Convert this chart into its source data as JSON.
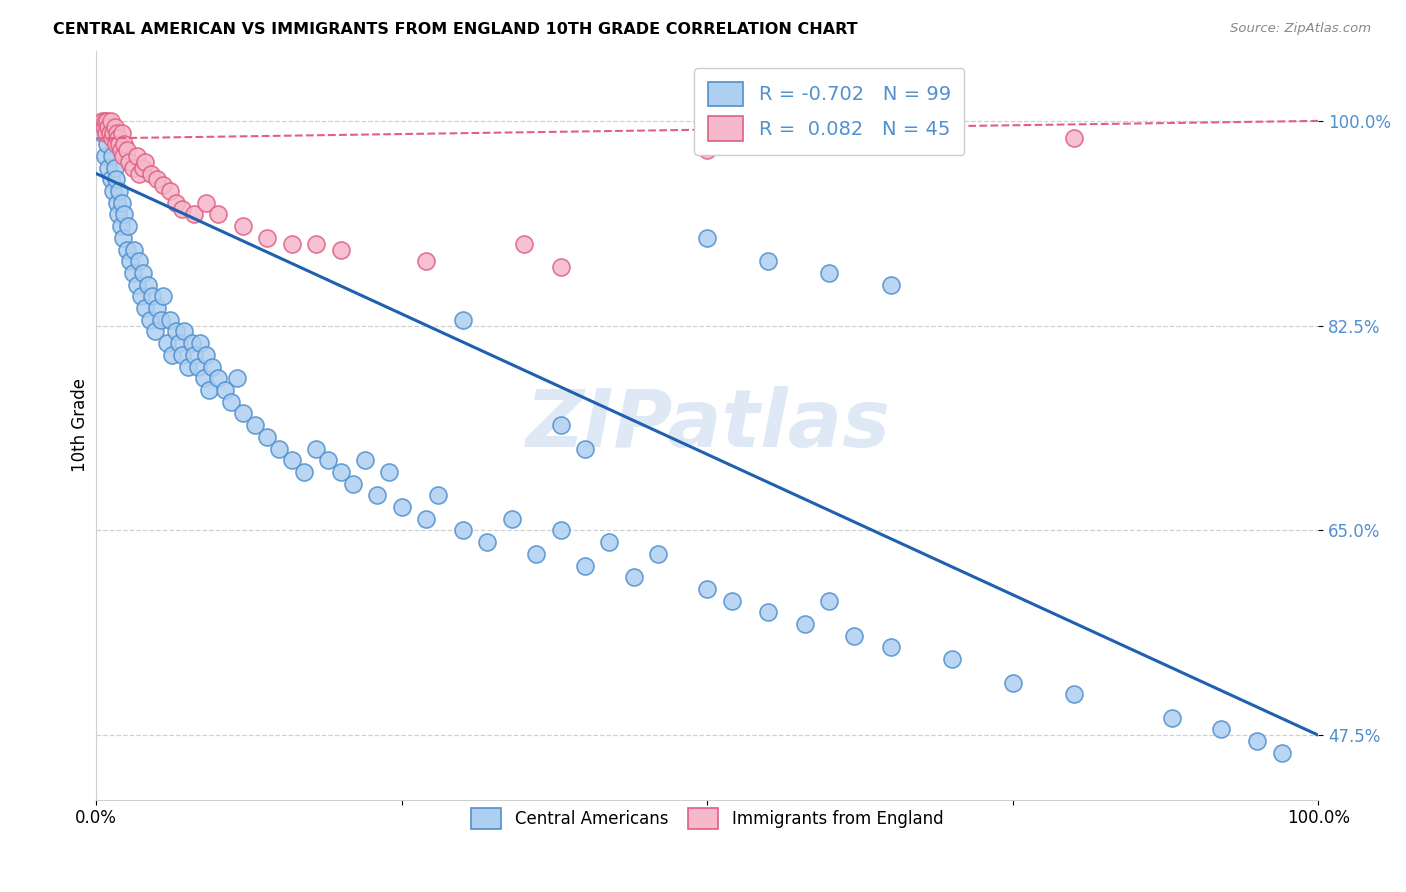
{
  "title": "CENTRAL AMERICAN VS IMMIGRANTS FROM ENGLAND 10TH GRADE CORRELATION CHART",
  "source": "Source: ZipAtlas.com",
  "ylabel": "10th Grade",
  "xmin": 0.0,
  "xmax": 1.0,
  "ymin": 0.42,
  "ymax": 1.06,
  "yticks": [
    0.475,
    0.65,
    0.825,
    1.0
  ],
  "ytick_labels": [
    "47.5%",
    "65.0%",
    "82.5%",
    "100.0%"
  ],
  "watermark": "ZIPatlas",
  "blue_R": "-0.702",
  "blue_N": "99",
  "pink_R": "0.082",
  "pink_N": "45",
  "blue_color": "#aecff0",
  "blue_edge_color": "#5090d0",
  "pink_color": "#f5b8cc",
  "pink_edge_color": "#e06080",
  "pink_line_color": "#e06080",
  "blue_line_color": "#2060b0",
  "blue_trend_x0": 0.0,
  "blue_trend_y0": 0.955,
  "blue_trend_x1": 1.0,
  "blue_trend_y1": 0.475,
  "pink_trend_x0": 0.0,
  "pink_trend_y0": 0.985,
  "pink_trend_x1": 1.0,
  "pink_trend_y1": 1.0,
  "blue_scatter_x": [
    0.005,
    0.007,
    0.009,
    0.01,
    0.012,
    0.013,
    0.014,
    0.015,
    0.016,
    0.017,
    0.018,
    0.019,
    0.02,
    0.021,
    0.022,
    0.023,
    0.025,
    0.026,
    0.028,
    0.03,
    0.031,
    0.033,
    0.035,
    0.037,
    0.038,
    0.04,
    0.042,
    0.044,
    0.046,
    0.048,
    0.05,
    0.053,
    0.055,
    0.058,
    0.06,
    0.062,
    0.065,
    0.068,
    0.07,
    0.072,
    0.075,
    0.078,
    0.08,
    0.083,
    0.085,
    0.088,
    0.09,
    0.092,
    0.095,
    0.1,
    0.105,
    0.11,
    0.115,
    0.12,
    0.13,
    0.14,
    0.15,
    0.16,
    0.17,
    0.18,
    0.19,
    0.2,
    0.21,
    0.22,
    0.23,
    0.24,
    0.25,
    0.27,
    0.28,
    0.3,
    0.32,
    0.34,
    0.36,
    0.38,
    0.4,
    0.42,
    0.44,
    0.46,
    0.5,
    0.52,
    0.55,
    0.58,
    0.6,
    0.62,
    0.65,
    0.7,
    0.75,
    0.8,
    0.88,
    0.92,
    0.95,
    0.97,
    0.5,
    0.55,
    0.6,
    0.65,
    0.38,
    0.4,
    0.3
  ],
  "blue_scatter_y": [
    0.99,
    0.97,
    0.98,
    0.96,
    0.95,
    0.97,
    0.94,
    0.96,
    0.95,
    0.93,
    0.92,
    0.94,
    0.91,
    0.93,
    0.9,
    0.92,
    0.89,
    0.91,
    0.88,
    0.87,
    0.89,
    0.86,
    0.88,
    0.85,
    0.87,
    0.84,
    0.86,
    0.83,
    0.85,
    0.82,
    0.84,
    0.83,
    0.85,
    0.81,
    0.83,
    0.8,
    0.82,
    0.81,
    0.8,
    0.82,
    0.79,
    0.81,
    0.8,
    0.79,
    0.81,
    0.78,
    0.8,
    0.77,
    0.79,
    0.78,
    0.77,
    0.76,
    0.78,
    0.75,
    0.74,
    0.73,
    0.72,
    0.71,
    0.7,
    0.72,
    0.71,
    0.7,
    0.69,
    0.71,
    0.68,
    0.7,
    0.67,
    0.66,
    0.68,
    0.65,
    0.64,
    0.66,
    0.63,
    0.65,
    0.62,
    0.64,
    0.61,
    0.63,
    0.6,
    0.59,
    0.58,
    0.57,
    0.59,
    0.56,
    0.55,
    0.54,
    0.52,
    0.51,
    0.49,
    0.48,
    0.47,
    0.46,
    0.9,
    0.88,
    0.87,
    0.86,
    0.74,
    0.72,
    0.83
  ],
  "pink_scatter_x": [
    0.005,
    0.006,
    0.007,
    0.008,
    0.009,
    0.01,
    0.011,
    0.012,
    0.013,
    0.014,
    0.015,
    0.016,
    0.017,
    0.018,
    0.019,
    0.02,
    0.021,
    0.022,
    0.023,
    0.025,
    0.027,
    0.03,
    0.033,
    0.035,
    0.038,
    0.04,
    0.045,
    0.05,
    0.055,
    0.06,
    0.065,
    0.07,
    0.08,
    0.09,
    0.1,
    0.12,
    0.14,
    0.16,
    0.2,
    0.27,
    0.35,
    0.38,
    0.8,
    0.5,
    0.18
  ],
  "pink_scatter_y": [
    1.0,
    0.995,
    1.0,
    0.99,
    1.0,
    0.995,
    0.99,
    1.0,
    0.985,
    0.99,
    0.995,
    0.98,
    0.99,
    0.985,
    0.98,
    0.975,
    0.99,
    0.97,
    0.98,
    0.975,
    0.965,
    0.96,
    0.97,
    0.955,
    0.96,
    0.965,
    0.955,
    0.95,
    0.945,
    0.94,
    0.93,
    0.925,
    0.92,
    0.93,
    0.92,
    0.91,
    0.9,
    0.895,
    0.89,
    0.88,
    0.895,
    0.875,
    0.985,
    0.975,
    0.895
  ]
}
